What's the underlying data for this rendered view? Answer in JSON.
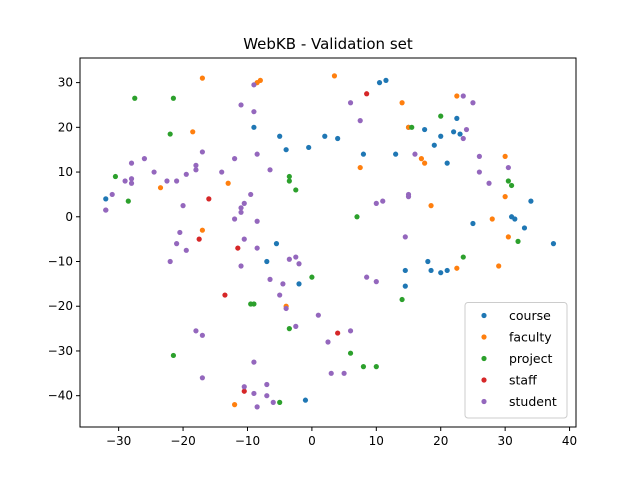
{
  "chart_data": {
    "type": "scatter",
    "title": "WebKB - Validation set",
    "xlabel": "",
    "ylabel": "",
    "xlim": [
      -36,
      41
    ],
    "ylim": [
      -47,
      35.5
    ],
    "xticks": [
      -30,
      -20,
      -10,
      0,
      10,
      20,
      30,
      40
    ],
    "yticks": [
      -40,
      -30,
      -20,
      -10,
      0,
      10,
      20,
      30
    ],
    "grid": false,
    "legend_position": "lower-right",
    "series": [
      {
        "name": "course",
        "color": "#1f77b4",
        "points": [
          [
            -32,
            4
          ],
          [
            -9,
            20
          ],
          [
            -5,
            18
          ],
          [
            -4,
            15
          ],
          [
            -0.5,
            15.5
          ],
          [
            2,
            18
          ],
          [
            4,
            17.5
          ],
          [
            8,
            14
          ],
          [
            10.5,
            30
          ],
          [
            11.5,
            30.5
          ],
          [
            13,
            14
          ],
          [
            15,
            20
          ],
          [
            17.5,
            19.5
          ],
          [
            19,
            16
          ],
          [
            20,
            18
          ],
          [
            21,
            12
          ],
          [
            22,
            19
          ],
          [
            22.5,
            22
          ],
          [
            23,
            18.5
          ],
          [
            25,
            -1.5
          ],
          [
            31,
            0
          ],
          [
            31.5,
            -0.5
          ],
          [
            33,
            -2.5
          ],
          [
            34,
            3.5
          ],
          [
            37.5,
            -6
          ],
          [
            -5.5,
            -6
          ],
          [
            -7,
            -10
          ],
          [
            -2,
            -15
          ],
          [
            14.5,
            -12
          ],
          [
            14.5,
            -15.5
          ],
          [
            18,
            -10
          ],
          [
            18.5,
            -12
          ],
          [
            20,
            -12.5
          ],
          [
            21,
            -12
          ],
          [
            -1,
            -41
          ]
        ]
      },
      {
        "name": "faculty",
        "color": "#ff7f0e",
        "points": [
          [
            -17,
            31
          ],
          [
            -18.5,
            19
          ],
          [
            -23.5,
            6.5
          ],
          [
            -13,
            7.5
          ],
          [
            -17,
            -3
          ],
          [
            -8.5,
            30
          ],
          [
            -8,
            30.5
          ],
          [
            3.5,
            31.5
          ],
          [
            7.5,
            11
          ],
          [
            14,
            25.5
          ],
          [
            15,
            20
          ],
          [
            17,
            13
          ],
          [
            17.5,
            12
          ],
          [
            18.5,
            2.5
          ],
          [
            22.5,
            27
          ],
          [
            28,
            -0.5
          ],
          [
            30,
            13.5
          ],
          [
            30,
            4.5
          ],
          [
            30.5,
            -4.5
          ],
          [
            29,
            -11
          ],
          [
            22.5,
            -11.5
          ],
          [
            -4,
            -20
          ],
          [
            -12,
            -42
          ]
        ]
      },
      {
        "name": "project",
        "color": "#2ca02c",
        "points": [
          [
            -27.5,
            26.5
          ],
          [
            -21.5,
            26.5
          ],
          [
            -22,
            18.5
          ],
          [
            -30.5,
            9
          ],
          [
            -28.5,
            3.5
          ],
          [
            -3.5,
            9
          ],
          [
            -3.5,
            8
          ],
          [
            -2.5,
            6
          ],
          [
            7,
            0
          ],
          [
            15.5,
            20
          ],
          [
            20,
            22.5
          ],
          [
            30.5,
            8
          ],
          [
            31,
            7
          ],
          [
            32,
            -5.5
          ],
          [
            23.5,
            -9
          ],
          [
            14,
            -18.5
          ],
          [
            0,
            -13.5
          ],
          [
            -9.5,
            -19.5
          ],
          [
            -9,
            -19.5
          ],
          [
            -3.5,
            -25
          ],
          [
            -21.5,
            -31
          ],
          [
            6,
            -30.5
          ],
          [
            8,
            -33.5
          ],
          [
            10,
            -33.5
          ],
          [
            -5,
            -41.5
          ]
        ]
      },
      {
        "name": "staff",
        "color": "#d62728",
        "points": [
          [
            8.5,
            27.5
          ],
          [
            -16,
            4
          ],
          [
            -17.5,
            -5
          ],
          [
            -11.5,
            -7
          ],
          [
            -13.5,
            -17.5
          ],
          [
            4,
            -26
          ],
          [
            -10.5,
            -39
          ]
        ]
      },
      {
        "name": "student",
        "color": "#9467bd",
        "points": [
          [
            -9,
            29.5
          ],
          [
            -11,
            25
          ],
          [
            -9,
            23.5
          ],
          [
            6,
            25.5
          ],
          [
            7.5,
            21.5
          ],
          [
            23.5,
            27
          ],
          [
            25,
            25.5
          ],
          [
            16,
            14
          ],
          [
            24,
            19.5
          ],
          [
            23.5,
            17.5
          ],
          [
            26,
            13.5
          ],
          [
            26,
            10
          ],
          [
            27.5,
            7.5
          ],
          [
            30.5,
            11
          ],
          [
            15,
            5
          ],
          [
            15,
            4.5
          ],
          [
            10,
            3
          ],
          [
            11,
            3.5
          ],
          [
            -17,
            14.5
          ],
          [
            -12,
            13
          ],
          [
            -18,
            11.5
          ],
          [
            -18,
            10.5
          ],
          [
            -19.5,
            9.5
          ],
          [
            -21,
            8
          ],
          [
            -22.5,
            8
          ],
          [
            -24.5,
            10
          ],
          [
            -26,
            13
          ],
          [
            -28,
            12
          ],
          [
            -28,
            8.5
          ],
          [
            -28,
            7.5
          ],
          [
            -29,
            8
          ],
          [
            -31,
            5
          ],
          [
            -32,
            1.5
          ],
          [
            -32,
            1.5
          ],
          [
            -20,
            2.5
          ],
          [
            -14,
            10
          ],
          [
            -8.5,
            14
          ],
          [
            -6.5,
            10.5
          ],
          [
            -9.5,
            5
          ],
          [
            -10.5,
            3
          ],
          [
            -11,
            2
          ],
          [
            -11,
            1
          ],
          [
            -12,
            -0.5
          ],
          [
            -8.5,
            -1
          ],
          [
            -10.5,
            -5
          ],
          [
            -8.5,
            -7
          ],
          [
            -20.5,
            -3.5
          ],
          [
            -21,
            -6
          ],
          [
            -19.5,
            -7.5
          ],
          [
            -22,
            -10
          ],
          [
            -11,
            -11
          ],
          [
            -6.5,
            -14
          ],
          [
            -4.5,
            -15
          ],
          [
            -3.5,
            -9.5
          ],
          [
            -2.5,
            -9
          ],
          [
            -2,
            -10.5
          ],
          [
            -5,
            -17.5
          ],
          [
            -4,
            -20.5
          ],
          [
            -2.5,
            -24.5
          ],
          [
            1,
            -22
          ],
          [
            2.5,
            -28
          ],
          [
            6,
            -25.5
          ],
          [
            8.5,
            -13.5
          ],
          [
            10,
            -14.5
          ],
          [
            14.5,
            -4.5
          ],
          [
            -18,
            -25.5
          ],
          [
            -17,
            -26.5
          ],
          [
            -17,
            -36
          ],
          [
            -9,
            -32.5
          ],
          [
            -7,
            -37.5
          ],
          [
            -10.5,
            -38
          ],
          [
            -9,
            -39.5
          ],
          [
            -8.5,
            -42.5
          ],
          [
            -7,
            -40
          ],
          [
            -6,
            -41.5
          ],
          [
            3,
            -35
          ],
          [
            5,
            -35
          ]
        ]
      }
    ]
  }
}
